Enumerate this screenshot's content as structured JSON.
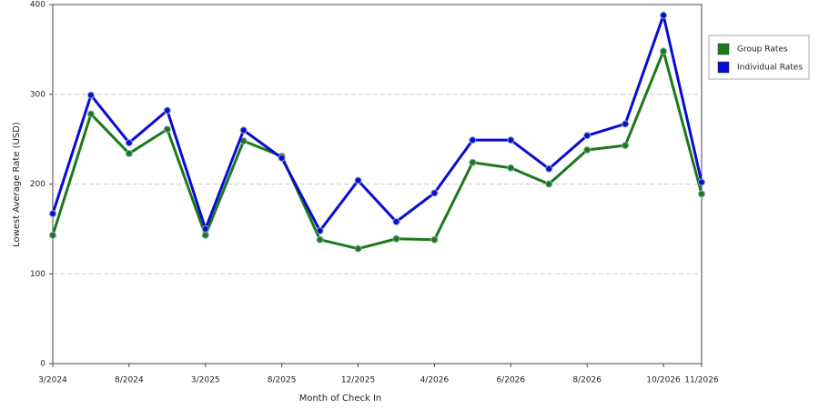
{
  "chart_data": {
    "type": "line",
    "x_label": "Month of Check In",
    "y_label": "Lowest Average Rate (USD)",
    "categories": [
      "3/2024",
      null,
      "8/2024",
      null,
      "3/2025",
      null,
      "8/2025",
      null,
      "12/2025",
      null,
      "4/2026",
      null,
      "6/2026",
      null,
      "8/2026",
      null,
      "10/2026",
      "11/2026"
    ],
    "series": [
      {
        "name": "Group Rates",
        "color": "#1a7a1a",
        "values": [
          143,
          278,
          234,
          261,
          143,
          248,
          231,
          138,
          128,
          139,
          138,
          224,
          218,
          200,
          238,
          243,
          348,
          189
        ]
      },
      {
        "name": "Individual Rates",
        "color": "#0a0ad6",
        "values": [
          167,
          299,
          246,
          282,
          150,
          260,
          229,
          148,
          204,
          158,
          190,
          249,
          249,
          217,
          254,
          267,
          388,
          202
        ]
      }
    ],
    "ylim": [
      0,
      400
    ],
    "yticks": [
      0,
      100,
      200,
      300,
      400
    ],
    "grid": true,
    "legend": "right"
  }
}
